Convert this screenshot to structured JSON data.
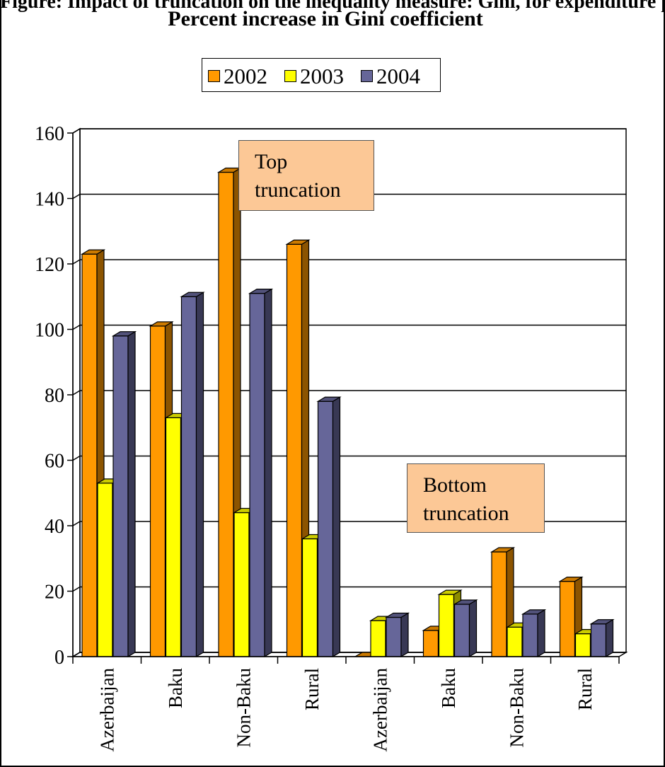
{
  "page_heading": "Figure: Impact of truncation on the inequality measure: Gini, for expenditure per adult equivalent",
  "chart_data": {
    "type": "bar",
    "title": "Percent increase in Gini coefficient",
    "categories": [
      "Azerbaijan",
      "Baku",
      "Non-Baku",
      "Rural",
      "Azerbaijan",
      "Baku",
      "Non-Baku",
      "Rural"
    ],
    "series": [
      {
        "name": "2002",
        "color": "#ff9900",
        "values": [
          123,
          101,
          148,
          126,
          0,
          8,
          32,
          23
        ]
      },
      {
        "name": "2003",
        "color": "#ffff00",
        "values": [
          53,
          73,
          44,
          36,
          11,
          19,
          9,
          7
        ]
      },
      {
        "name": "2004",
        "color": "#666699",
        "values": [
          98,
          110,
          111,
          78,
          12,
          16,
          13,
          10
        ]
      }
    ],
    "ylim": [
      0,
      160
    ],
    "yticks": [
      0,
      20,
      40,
      60,
      80,
      100,
      120,
      140,
      160
    ],
    "grid": true,
    "legend_placement": "top-center",
    "annotations": [
      {
        "id": "top",
        "lines": [
          "Top",
          "truncation"
        ]
      },
      {
        "id": "bottom",
        "lines": [
          "Bottom",
          "truncation"
        ]
      }
    ]
  }
}
